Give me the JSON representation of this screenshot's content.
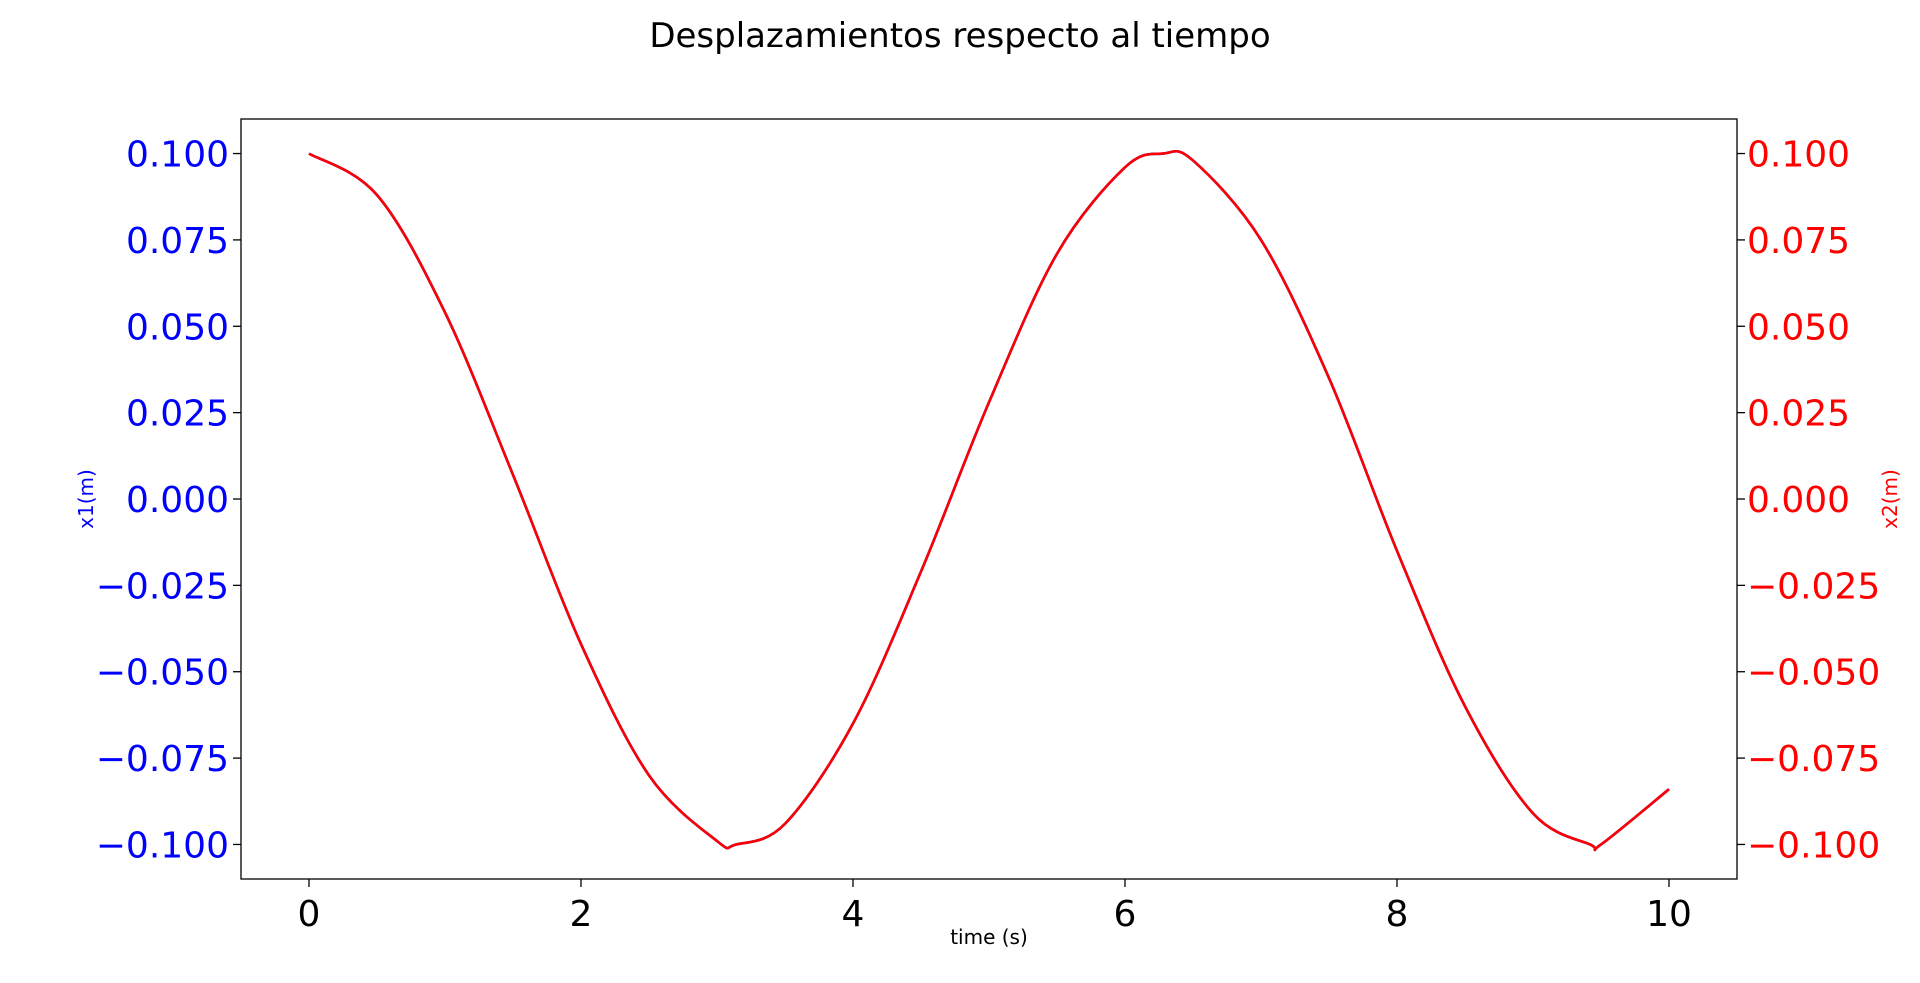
{
  "chart_data": {
    "type": "line",
    "title": "Desplazamientos respecto al tiempo",
    "xlabel": "time (s)",
    "ylabel_left": "x1(m)",
    "ylabel_right": "x2(m)",
    "xlim": [
      -0.5,
      10.5
    ],
    "ylim": [
      -0.11,
      0.11
    ],
    "x_ticks": [
      0,
      2,
      4,
      6,
      8,
      10
    ],
    "x_tick_labels": [
      "0",
      "2",
      "4",
      "6",
      "8",
      "10"
    ],
    "y_ticks": [
      0.1,
      0.075,
      0.05,
      0.025,
      0.0,
      -0.025,
      -0.05,
      -0.075,
      -0.1
    ],
    "y_tick_labels_left": [
      "0.100",
      "0.075",
      "0.050",
      "0.025",
      "0.000",
      "−0.025",
      "−0.050",
      "−0.075",
      "−0.100"
    ],
    "y_tick_labels_right": [
      "0.100",
      "0.075",
      "0.050",
      "0.025",
      "0.000",
      "−0.025",
      "−0.050",
      "−0.075",
      "−0.100"
    ],
    "grid": false,
    "colors": {
      "left_axis": "#0000ff",
      "right_axis": "#ff0000",
      "x1_line": "#0000ff",
      "x2_line": "#ff0000"
    },
    "series": [
      {
        "axis": "left",
        "x": [
          0,
          0.5,
          1,
          1.5,
          2,
          2.5,
          3,
          3.14,
          3.5,
          4,
          4.5,
          5,
          5.5,
          6,
          6.28,
          6.5,
          7,
          7.5,
          8,
          8.5,
          9,
          9.42,
          9.5,
          10
        ],
        "y": [
          0.1,
          0.088,
          0.054,
          0.007,
          -0.042,
          -0.08,
          -0.099,
          -0.1,
          -0.094,
          -0.065,
          -0.021,
          0.028,
          0.071,
          0.096,
          0.1,
          0.098,
          0.075,
          0.035,
          -0.015,
          -0.06,
          -0.091,
          -0.1,
          -0.1,
          -0.084
        ]
      },
      {
        "axis": "right",
        "x": [
          0,
          0.5,
          1,
          1.5,
          2,
          2.5,
          3,
          3.14,
          3.5,
          4,
          4.5,
          5,
          5.5,
          6,
          6.28,
          6.5,
          7,
          7.5,
          8,
          8.5,
          9,
          9.42,
          9.5,
          10
        ],
        "y": [
          0.1,
          0.088,
          0.054,
          0.007,
          -0.042,
          -0.08,
          -0.099,
          -0.1,
          -0.094,
          -0.065,
          -0.021,
          0.028,
          0.071,
          0.096,
          0.1,
          0.098,
          0.075,
          0.035,
          -0.015,
          -0.06,
          -0.091,
          -0.1,
          -0.1,
          -0.084
        ]
      }
    ]
  }
}
